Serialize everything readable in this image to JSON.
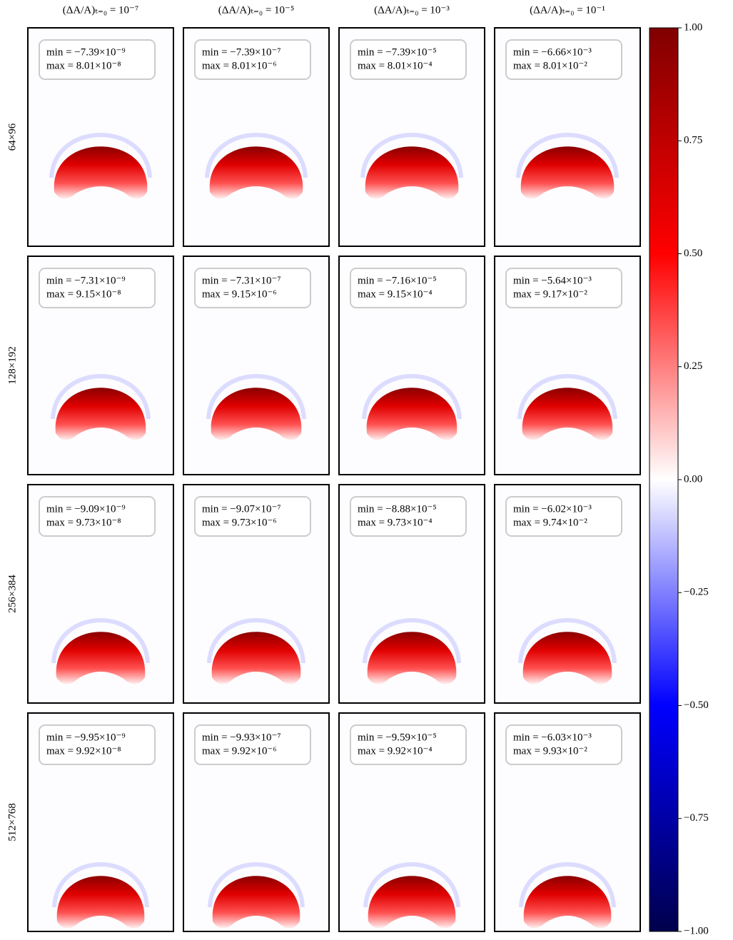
{
  "chart_data": {
    "type": "heatmap",
    "columns": [
      "(ΔA/A)ₜ₌₀ = 10⁻⁷",
      "(ΔA/A)ₜ₌₀ = 10⁻⁵",
      "(ΔA/A)ₜ₌₀ = 10⁻³",
      "(ΔA/A)ₜ₌₀ = 10⁻¹"
    ],
    "rows": [
      "64×96",
      "128×192",
      "256×384",
      "512×768"
    ],
    "panels": [
      [
        {
          "min": "min = −7.39×10⁻⁹",
          "max": "max = 8.01×10⁻⁸"
        },
        {
          "min": "min = −7.39×10⁻⁷",
          "max": "max = 8.01×10⁻⁶"
        },
        {
          "min": "min = −7.39×10⁻⁵",
          "max": "max = 8.01×10⁻⁴"
        },
        {
          "min": "min = −6.66×10⁻³",
          "max": "max = 8.01×10⁻²"
        }
      ],
      [
        {
          "min": "min = −7.31×10⁻⁹",
          "max": "max = 9.15×10⁻⁸"
        },
        {
          "min": "min = −7.31×10⁻⁷",
          "max": "max = 9.15×10⁻⁶"
        },
        {
          "min": "min = −7.16×10⁻⁵",
          "max": "max = 9.15×10⁻⁴"
        },
        {
          "min": "min = −5.64×10⁻³",
          "max": "max = 9.17×10⁻²"
        }
      ],
      [
        {
          "min": "min = −9.09×10⁻⁹",
          "max": "max = 9.73×10⁻⁸"
        },
        {
          "min": "min = −9.07×10⁻⁷",
          "max": "max = 9.73×10⁻⁶"
        },
        {
          "min": "min = −8.88×10⁻⁵",
          "max": "max = 9.73×10⁻⁴"
        },
        {
          "min": "min = −6.02×10⁻³",
          "max": "max = 9.74×10⁻²"
        }
      ],
      [
        {
          "min": "min = −9.95×10⁻⁹",
          "max": "max = 9.92×10⁻⁸"
        },
        {
          "min": "min = −9.93×10⁻⁷",
          "max": "max = 9.92×10⁻⁶"
        },
        {
          "min": "min = −9.59×10⁻⁵",
          "max": "max = 9.92×10⁻⁴"
        },
        {
          "min": "min = −6.03×10⁻³",
          "max": "max = 9.93×10⁻²"
        }
      ]
    ],
    "colorbar": {
      "ylim": [
        -1,
        1
      ],
      "yticks": [
        {
          "value": 1,
          "label": "1.00"
        },
        {
          "value": 0.75,
          "label": "0.75"
        },
        {
          "value": 0.5,
          "label": "0.50"
        },
        {
          "value": 0.25,
          "label": "0.25"
        },
        {
          "value": 0,
          "label": "0.00"
        },
        {
          "value": -0.25,
          "label": "−0.25"
        },
        {
          "value": -0.5,
          "label": "−0.50"
        },
        {
          "value": -0.75,
          "label": "−0.75"
        },
        {
          "value": -1,
          "label": "−1.00"
        }
      ],
      "colormap": [
        "#00004c",
        "#0000ff",
        "#ffffff",
        "#ff0000",
        "#800000"
      ]
    }
  }
}
